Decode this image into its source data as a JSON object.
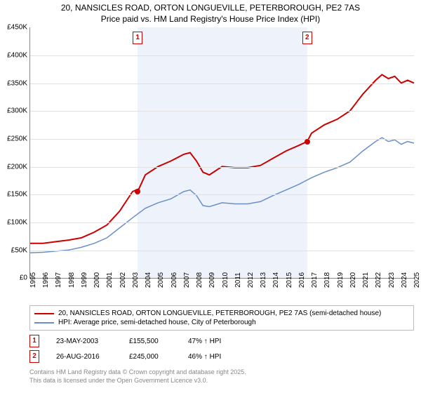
{
  "title_line1": "20, NANSICLES ROAD, ORTON LONGUEVILLE, PETERBOROUGH, PE2 7AS",
  "title_line2": "Price paid vs. HM Land Registry's House Price Index (HPI)",
  "chart": {
    "type": "line",
    "background_color": "#ffffff",
    "grid_color": "#e0e0e0",
    "axis_color": "#888888",
    "ylim": [
      0,
      450
    ],
    "ytick_step": 50,
    "y_prefix": "£",
    "y_suffix": "K",
    "x_years": [
      1995,
      1996,
      1997,
      1998,
      1999,
      2000,
      2001,
      2002,
      2003,
      2004,
      2005,
      2006,
      2007,
      2008,
      2009,
      2010,
      2011,
      2012,
      2013,
      2014,
      2015,
      2016,
      2017,
      2018,
      2019,
      2020,
      2021,
      2022,
      2023,
      2024,
      2025
    ],
    "x_tick_fontsize": 10,
    "y_tick_fontsize": 10,
    "highlight_band": {
      "from_year": 2003.4,
      "to_year": 2016.65,
      "color": "#eef3fb"
    },
    "series": [
      {
        "key": "property",
        "label": "20, NANSICLES ROAD, ORTON LONGUEVILLE, PETERBOROUGH, PE2 7AS (semi-detached house)",
        "color": "#cc0000",
        "line_width": 2,
        "points": [
          [
            1995,
            62
          ],
          [
            1996,
            62
          ],
          [
            1997,
            65
          ],
          [
            1998,
            68
          ],
          [
            1999,
            72
          ],
          [
            2000,
            82
          ],
          [
            2001,
            95
          ],
          [
            2002,
            120
          ],
          [
            2003,
            155
          ],
          [
            2003.5,
            160
          ],
          [
            2004,
            185
          ],
          [
            2005,
            200
          ],
          [
            2006,
            210
          ],
          [
            2007,
            222
          ],
          [
            2007.5,
            225
          ],
          [
            2008,
            210
          ],
          [
            2008.5,
            190
          ],
          [
            2009,
            185
          ],
          [
            2010,
            200
          ],
          [
            2011,
            198
          ],
          [
            2012,
            198
          ],
          [
            2013,
            202
          ],
          [
            2014,
            215
          ],
          [
            2015,
            228
          ],
          [
            2016,
            238
          ],
          [
            2016.65,
            245
          ],
          [
            2017,
            260
          ],
          [
            2018,
            275
          ],
          [
            2019,
            285
          ],
          [
            2020,
            300
          ],
          [
            2021,
            330
          ],
          [
            2022,
            355
          ],
          [
            2022.5,
            365
          ],
          [
            2023,
            358
          ],
          [
            2023.5,
            362
          ],
          [
            2024,
            350
          ],
          [
            2024.5,
            355
          ],
          [
            2025,
            350
          ]
        ]
      },
      {
        "key": "hpi",
        "label": "HPI: Average price, semi-detached house, City of Peterborough",
        "color": "#6a8fc7",
        "line_width": 1.5,
        "points": [
          [
            1995,
            45
          ],
          [
            1996,
            46
          ],
          [
            1997,
            48
          ],
          [
            1998,
            50
          ],
          [
            1999,
            55
          ],
          [
            2000,
            62
          ],
          [
            2001,
            72
          ],
          [
            2002,
            90
          ],
          [
            2003,
            108
          ],
          [
            2004,
            125
          ],
          [
            2005,
            135
          ],
          [
            2006,
            142
          ],
          [
            2007,
            155
          ],
          [
            2007.5,
            158
          ],
          [
            2008,
            148
          ],
          [
            2008.5,
            130
          ],
          [
            2009,
            128
          ],
          [
            2010,
            135
          ],
          [
            2011,
            133
          ],
          [
            2012,
            133
          ],
          [
            2013,
            137
          ],
          [
            2014,
            148
          ],
          [
            2015,
            158
          ],
          [
            2016,
            168
          ],
          [
            2017,
            180
          ],
          [
            2018,
            190
          ],
          [
            2019,
            198
          ],
          [
            2020,
            208
          ],
          [
            2021,
            228
          ],
          [
            2022,
            245
          ],
          [
            2022.5,
            252
          ],
          [
            2023,
            245
          ],
          [
            2023.5,
            248
          ],
          [
            2024,
            240
          ],
          [
            2024.5,
            245
          ],
          [
            2025,
            242
          ]
        ]
      }
    ],
    "sale_markers": [
      {
        "n": "1",
        "year": 2003.4,
        "price_k": 155.5,
        "color": "#cc0000"
      },
      {
        "n": "2",
        "year": 2016.65,
        "price_k": 245,
        "color": "#cc0000"
      }
    ]
  },
  "legend": {
    "border_color": "#bbbbbb"
  },
  "sales": [
    {
      "n": "1",
      "date": "23-MAY-2003",
      "price": "£155,500",
      "pct": "47% ↑ HPI",
      "color": "#cc0000"
    },
    {
      "n": "2",
      "date": "26-AUG-2016",
      "price": "£245,000",
      "pct": "46% ↑ HPI",
      "color": "#cc0000"
    }
  ],
  "attribution_line1": "Contains HM Land Registry data © Crown copyright and database right 2025.",
  "attribution_line2": "This data is licensed under the Open Government Licence v3.0."
}
